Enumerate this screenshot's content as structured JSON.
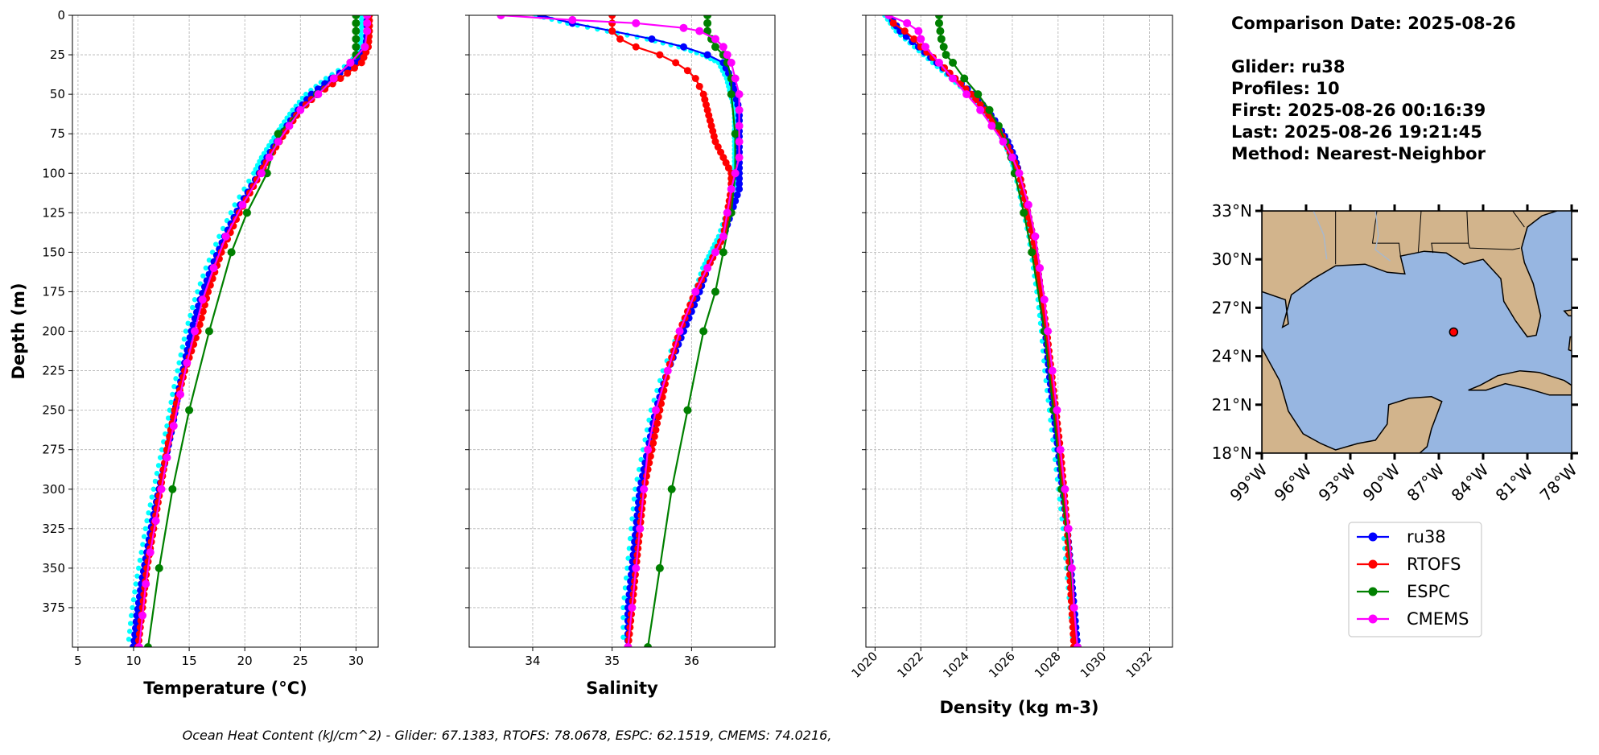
{
  "info": {
    "lines": [
      "Comparison Date: 2025-08-26",
      "",
      "Glider: ru38",
      "Profiles: 10",
      "First: 2025-08-26 00:16:39",
      "Last: 2025-08-26 19:21:45",
      "Method: Nearest-Neighbor"
    ]
  },
  "footer": "Ocean Heat Content (kJ/cm^2) - Glider: 67.1383,  RTOFS: 78.0678,  ESPC: 62.1519,  CMEMS: 74.0216,",
  "legend": {
    "entries": [
      {
        "name": "ru38",
        "color": "#0000ff"
      },
      {
        "name": "RTOFS",
        "color": "#ff0000"
      },
      {
        "name": "ESPC",
        "color": "#008000"
      },
      {
        "name": "CMEMS",
        "color": "#ff00ff"
      }
    ]
  },
  "map": {
    "lat_ticks": [
      "18°N",
      "21°N",
      "24°N",
      "27°N",
      "30°N",
      "33°N"
    ],
    "lon_ticks": [
      "99°W",
      "96°W",
      "93°W",
      "90°W",
      "87°W",
      "84°W",
      "81°W",
      "78°W"
    ],
    "lat_range": [
      18,
      33
    ],
    "lon_range": [
      -99,
      -78
    ],
    "location": {
      "lon": -86.0,
      "lat": 25.5
    },
    "colors": {
      "ocean": "#97b6e1",
      "land": "#d2b48c",
      "marker": "#ff0000"
    }
  },
  "chart_data": [
    {
      "type": "line",
      "xlabel": "Temperature (°C)",
      "ylabel": "Depth (m)",
      "xlim": [
        4.5,
        32
      ],
      "ylim": [
        400,
        0
      ],
      "xticks": [
        5,
        10,
        15,
        20,
        25,
        30
      ],
      "yticks": [
        0,
        25,
        50,
        75,
        100,
        125,
        150,
        175,
        200,
        225,
        250,
        275,
        300,
        325,
        350,
        375
      ],
      "grid": true,
      "series": [
        {
          "name": "ru38",
          "color": "#0000ff",
          "depth": [
            0,
            10,
            20,
            30,
            40,
            50,
            60,
            70,
            80,
            90,
            100,
            120,
            140,
            160,
            180,
            200,
            220,
            240,
            260,
            280,
            300,
            320,
            340,
            360,
            380,
            400
          ],
          "values": [
            31.0,
            31.0,
            30.9,
            30.0,
            27.8,
            26.0,
            24.8,
            23.8,
            22.9,
            22.0,
            21.3,
            19.6,
            18.2,
            17.0,
            16.0,
            15.2,
            14.6,
            14.0,
            13.5,
            12.9,
            12.3,
            11.7,
            11.2,
            10.7,
            10.3,
            10.0
          ]
        },
        {
          "name": "RTOFS",
          "color": "#ff0000",
          "depth": [
            0,
            10,
            20,
            30,
            40,
            50,
            60,
            70,
            80,
            90,
            100,
            125,
            150,
            175,
            200,
            225,
            250,
            275,
            300,
            325,
            350,
            375,
            400
          ],
          "values": [
            31.2,
            31.2,
            31.1,
            30.5,
            28.6,
            26.5,
            25.0,
            24.0,
            23.1,
            22.2,
            21.4,
            19.5,
            17.9,
            16.7,
            15.8,
            14.6,
            13.7,
            13.0,
            12.4,
            11.8,
            11.2,
            10.8,
            10.4
          ]
        },
        {
          "name": "ESPC",
          "color": "#008000",
          "depth": [
            0,
            5,
            10,
            15,
            20,
            25,
            30,
            40,
            50,
            75,
            100,
            125,
            150,
            200,
            250,
            300,
            350,
            400
          ],
          "values": [
            30.0,
            30.0,
            30.0,
            30.0,
            30.0,
            30.0,
            29.5,
            28.0,
            26.5,
            23.0,
            22.0,
            20.2,
            18.8,
            16.8,
            15.0,
            13.5,
            12.3,
            11.3
          ]
        },
        {
          "name": "CMEMS",
          "color": "#ff00ff",
          "depth": [
            0,
            5,
            10,
            20,
            30,
            40,
            50,
            60,
            70,
            80,
            90,
            100,
            120,
            140,
            160,
            180,
            200,
            220,
            240,
            260,
            280,
            300,
            320,
            340,
            360,
            380,
            400
          ],
          "values": [
            31.0,
            31.0,
            31.0,
            30.8,
            29.5,
            28.0,
            26.6,
            25.0,
            24.0,
            23.0,
            22.2,
            21.5,
            19.8,
            18.3,
            17.2,
            16.2,
            15.5,
            14.8,
            14.2,
            13.6,
            13.0,
            12.5,
            12.0,
            11.5,
            11.1,
            10.8,
            10.5
          ]
        }
      ]
    },
    {
      "type": "line",
      "xlabel": "Salinity",
      "xlim": [
        33.2,
        37.05
      ],
      "ylim": [
        400,
        0
      ],
      "xticks": [
        34,
        35,
        36
      ],
      "grid": true,
      "series": [
        {
          "name": "ru38",
          "color": "#0000ff",
          "depth": [
            0,
            5,
            10,
            15,
            20,
            25,
            30,
            40,
            50,
            60,
            70,
            80,
            90,
            100,
            110,
            125,
            140,
            150,
            160,
            175,
            200,
            225,
            250,
            275,
            300,
            325,
            350,
            375,
            400
          ],
          "values": [
            34.1,
            34.5,
            35.0,
            35.5,
            35.9,
            36.2,
            36.4,
            36.5,
            36.55,
            36.6,
            36.6,
            36.6,
            36.6,
            36.6,
            36.6,
            36.5,
            36.4,
            36.3,
            36.2,
            36.1,
            35.9,
            35.7,
            35.55,
            35.45,
            35.35,
            35.3,
            35.25,
            35.2,
            35.2
          ]
        },
        {
          "name": "RTOFS",
          "color": "#ff0000",
          "depth": [
            0,
            5,
            10,
            15,
            20,
            25,
            30,
            35,
            40,
            45,
            50,
            60,
            70,
            80,
            90,
            100,
            110,
            125,
            140,
            150,
            160,
            175,
            200,
            225,
            250,
            275,
            300,
            325,
            350,
            375,
            400
          ],
          "values": [
            35.0,
            35.0,
            35.0,
            35.1,
            35.3,
            35.6,
            35.8,
            35.95,
            36.05,
            36.1,
            36.15,
            36.2,
            36.25,
            36.3,
            36.4,
            36.5,
            36.5,
            36.45,
            36.4,
            36.3,
            36.2,
            36.05,
            35.85,
            35.7,
            35.6,
            35.5,
            35.4,
            35.35,
            35.3,
            35.25,
            35.2
          ]
        },
        {
          "name": "ESPC",
          "color": "#008000",
          "depth": [
            0,
            5,
            10,
            15,
            20,
            25,
            30,
            40,
            50,
            75,
            100,
            125,
            150,
            175,
            200,
            250,
            300,
            350,
            400
          ],
          "values": [
            36.2,
            36.2,
            36.2,
            36.25,
            36.3,
            36.4,
            36.45,
            36.5,
            36.5,
            36.55,
            36.55,
            36.5,
            36.4,
            36.3,
            36.15,
            35.95,
            35.75,
            35.6,
            35.45
          ]
        },
        {
          "name": "CMEMS",
          "color": "#ff00ff",
          "depth": [
            0,
            3,
            5,
            8,
            10,
            15,
            20,
            25,
            30,
            40,
            50,
            60,
            70,
            80,
            90,
            100,
            110,
            125,
            140,
            150,
            160,
            175,
            200,
            225,
            250,
            275,
            300,
            325,
            350,
            375,
            400
          ],
          "values": [
            33.6,
            34.5,
            35.3,
            35.9,
            36.1,
            36.3,
            36.4,
            36.45,
            36.5,
            36.55,
            36.6,
            36.6,
            36.6,
            36.6,
            36.6,
            36.55,
            36.5,
            36.45,
            36.4,
            36.3,
            36.2,
            36.05,
            35.85,
            35.7,
            35.55,
            35.45,
            35.4,
            35.35,
            35.3,
            35.25,
            35.2
          ]
        }
      ]
    },
    {
      "type": "line",
      "xlabel": "Density (kg m-3)",
      "xlim": [
        1019.6,
        1033
      ],
      "ylim": [
        400,
        0
      ],
      "xticks": [
        1020,
        1022,
        1024,
        1026,
        1028,
        1030,
        1032
      ],
      "grid": true,
      "series": [
        {
          "name": "ru38",
          "color": "#0000ff",
          "depth": [
            0,
            10,
            20,
            30,
            40,
            50,
            60,
            70,
            80,
            90,
            100,
            120,
            140,
            160,
            180,
            200,
            225,
            250,
            275,
            300,
            325,
            350,
            375,
            400
          ],
          "values": [
            1020.6,
            1021.1,
            1021.9,
            1022.7,
            1023.5,
            1024.3,
            1024.9,
            1025.4,
            1025.8,
            1026.1,
            1026.3,
            1026.6,
            1026.9,
            1027.1,
            1027.3,
            1027.45,
            1027.6,
            1027.8,
            1028.0,
            1028.2,
            1028.4,
            1028.55,
            1028.7,
            1028.85
          ]
        },
        {
          "name": "RTOFS",
          "color": "#ff0000",
          "depth": [
            0,
            5,
            10,
            15,
            20,
            30,
            40,
            50,
            60,
            70,
            80,
            90,
            100,
            120,
            140,
            160,
            180,
            200,
            225,
            250,
            275,
            300,
            325,
            350,
            375,
            400
          ],
          "values": [
            1020.6,
            1020.8,
            1021.3,
            1021.7,
            1022.0,
            1022.8,
            1023.5,
            1024.2,
            1024.8,
            1025.3,
            1025.7,
            1026.0,
            1026.3,
            1026.6,
            1026.9,
            1027.1,
            1027.3,
            1027.5,
            1027.7,
            1027.9,
            1028.1,
            1028.25,
            1028.4,
            1028.5,
            1028.6,
            1028.7
          ]
        },
        {
          "name": "ESPC",
          "color": "#008000",
          "depth": [
            0,
            5,
            10,
            15,
            20,
            25,
            30,
            40,
            50,
            60,
            70,
            80,
            90,
            100,
            125,
            150,
            200,
            250,
            300,
            350,
            400
          ],
          "values": [
            1022.8,
            1022.8,
            1022.85,
            1022.9,
            1023.0,
            1023.1,
            1023.4,
            1023.9,
            1024.5,
            1025.0,
            1025.4,
            1025.7,
            1025.95,
            1026.1,
            1026.5,
            1026.85,
            1027.4,
            1027.8,
            1028.15,
            1028.55,
            1028.85
          ]
        },
        {
          "name": "CMEMS",
          "color": "#ff00ff",
          "depth": [
            0,
            5,
            10,
            15,
            20,
            30,
            40,
            50,
            60,
            70,
            80,
            90,
            100,
            120,
            140,
            160,
            180,
            200,
            225,
            250,
            275,
            300,
            325,
            350,
            375,
            400
          ],
          "values": [
            1020.6,
            1021.4,
            1021.9,
            1022.0,
            1022.2,
            1022.8,
            1023.4,
            1024.0,
            1024.6,
            1025.1,
            1025.6,
            1026.0,
            1026.3,
            1026.7,
            1027.0,
            1027.2,
            1027.4,
            1027.55,
            1027.75,
            1027.95,
            1028.1,
            1028.3,
            1028.45,
            1028.6,
            1028.7,
            1028.85
          ]
        }
      ]
    }
  ]
}
